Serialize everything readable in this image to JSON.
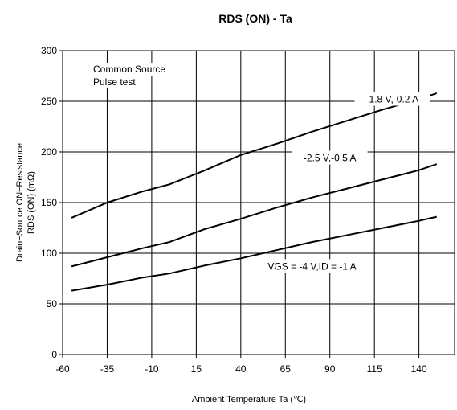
{
  "chart_data": {
    "type": "line",
    "title": "RDS (ON) - Ta",
    "xlabel": "Ambient Temperature  Ta (℃)",
    "ylabel_line1": "Drain−Source ON−Resistance",
    "ylabel_line2": "RDS (ON)  (mΩ)",
    "xlim": [
      -60,
      160
    ],
    "ylim": [
      0,
      300
    ],
    "xticks": [
      -60,
      -35,
      -10,
      15,
      40,
      65,
      90,
      115,
      140
    ],
    "yticks": [
      0,
      50,
      100,
      150,
      200,
      250,
      300
    ],
    "grid": true,
    "annotations": {
      "line1": "Common Source",
      "line2": "Pulse test"
    },
    "series": [
      {
        "name": "-1.8 V,-0.2 A",
        "x": [
          -55,
          -35,
          -15,
          0,
          20,
          40,
          60,
          80,
          100,
          120,
          140,
          150
        ],
        "y": [
          135,
          150,
          161,
          168,
          182,
          197,
          208,
          220,
          231,
          242,
          252,
          258
        ]
      },
      {
        "name": "-2.5 V,-0.5 A",
        "x": [
          -55,
          -35,
          -15,
          0,
          20,
          40,
          60,
          80,
          100,
          120,
          140,
          150
        ],
        "y": [
          87,
          96,
          105,
          111,
          124,
          134,
          145,
          155,
          164,
          173,
          182,
          188
        ]
      },
      {
        "name": "VGS = -4 V,ID = -1 A",
        "x": [
          -55,
          -35,
          -15,
          0,
          20,
          40,
          60,
          80,
          100,
          120,
          140,
          150
        ],
        "y": [
          63,
          69,
          76,
          80,
          88,
          95,
          103,
          111,
          118,
          125,
          132,
          136
        ]
      }
    ],
    "series_label_anchor_x": [
      125,
      90,
      80
    ],
    "series_label_anchor_y": [
      252,
      194,
      87
    ]
  }
}
